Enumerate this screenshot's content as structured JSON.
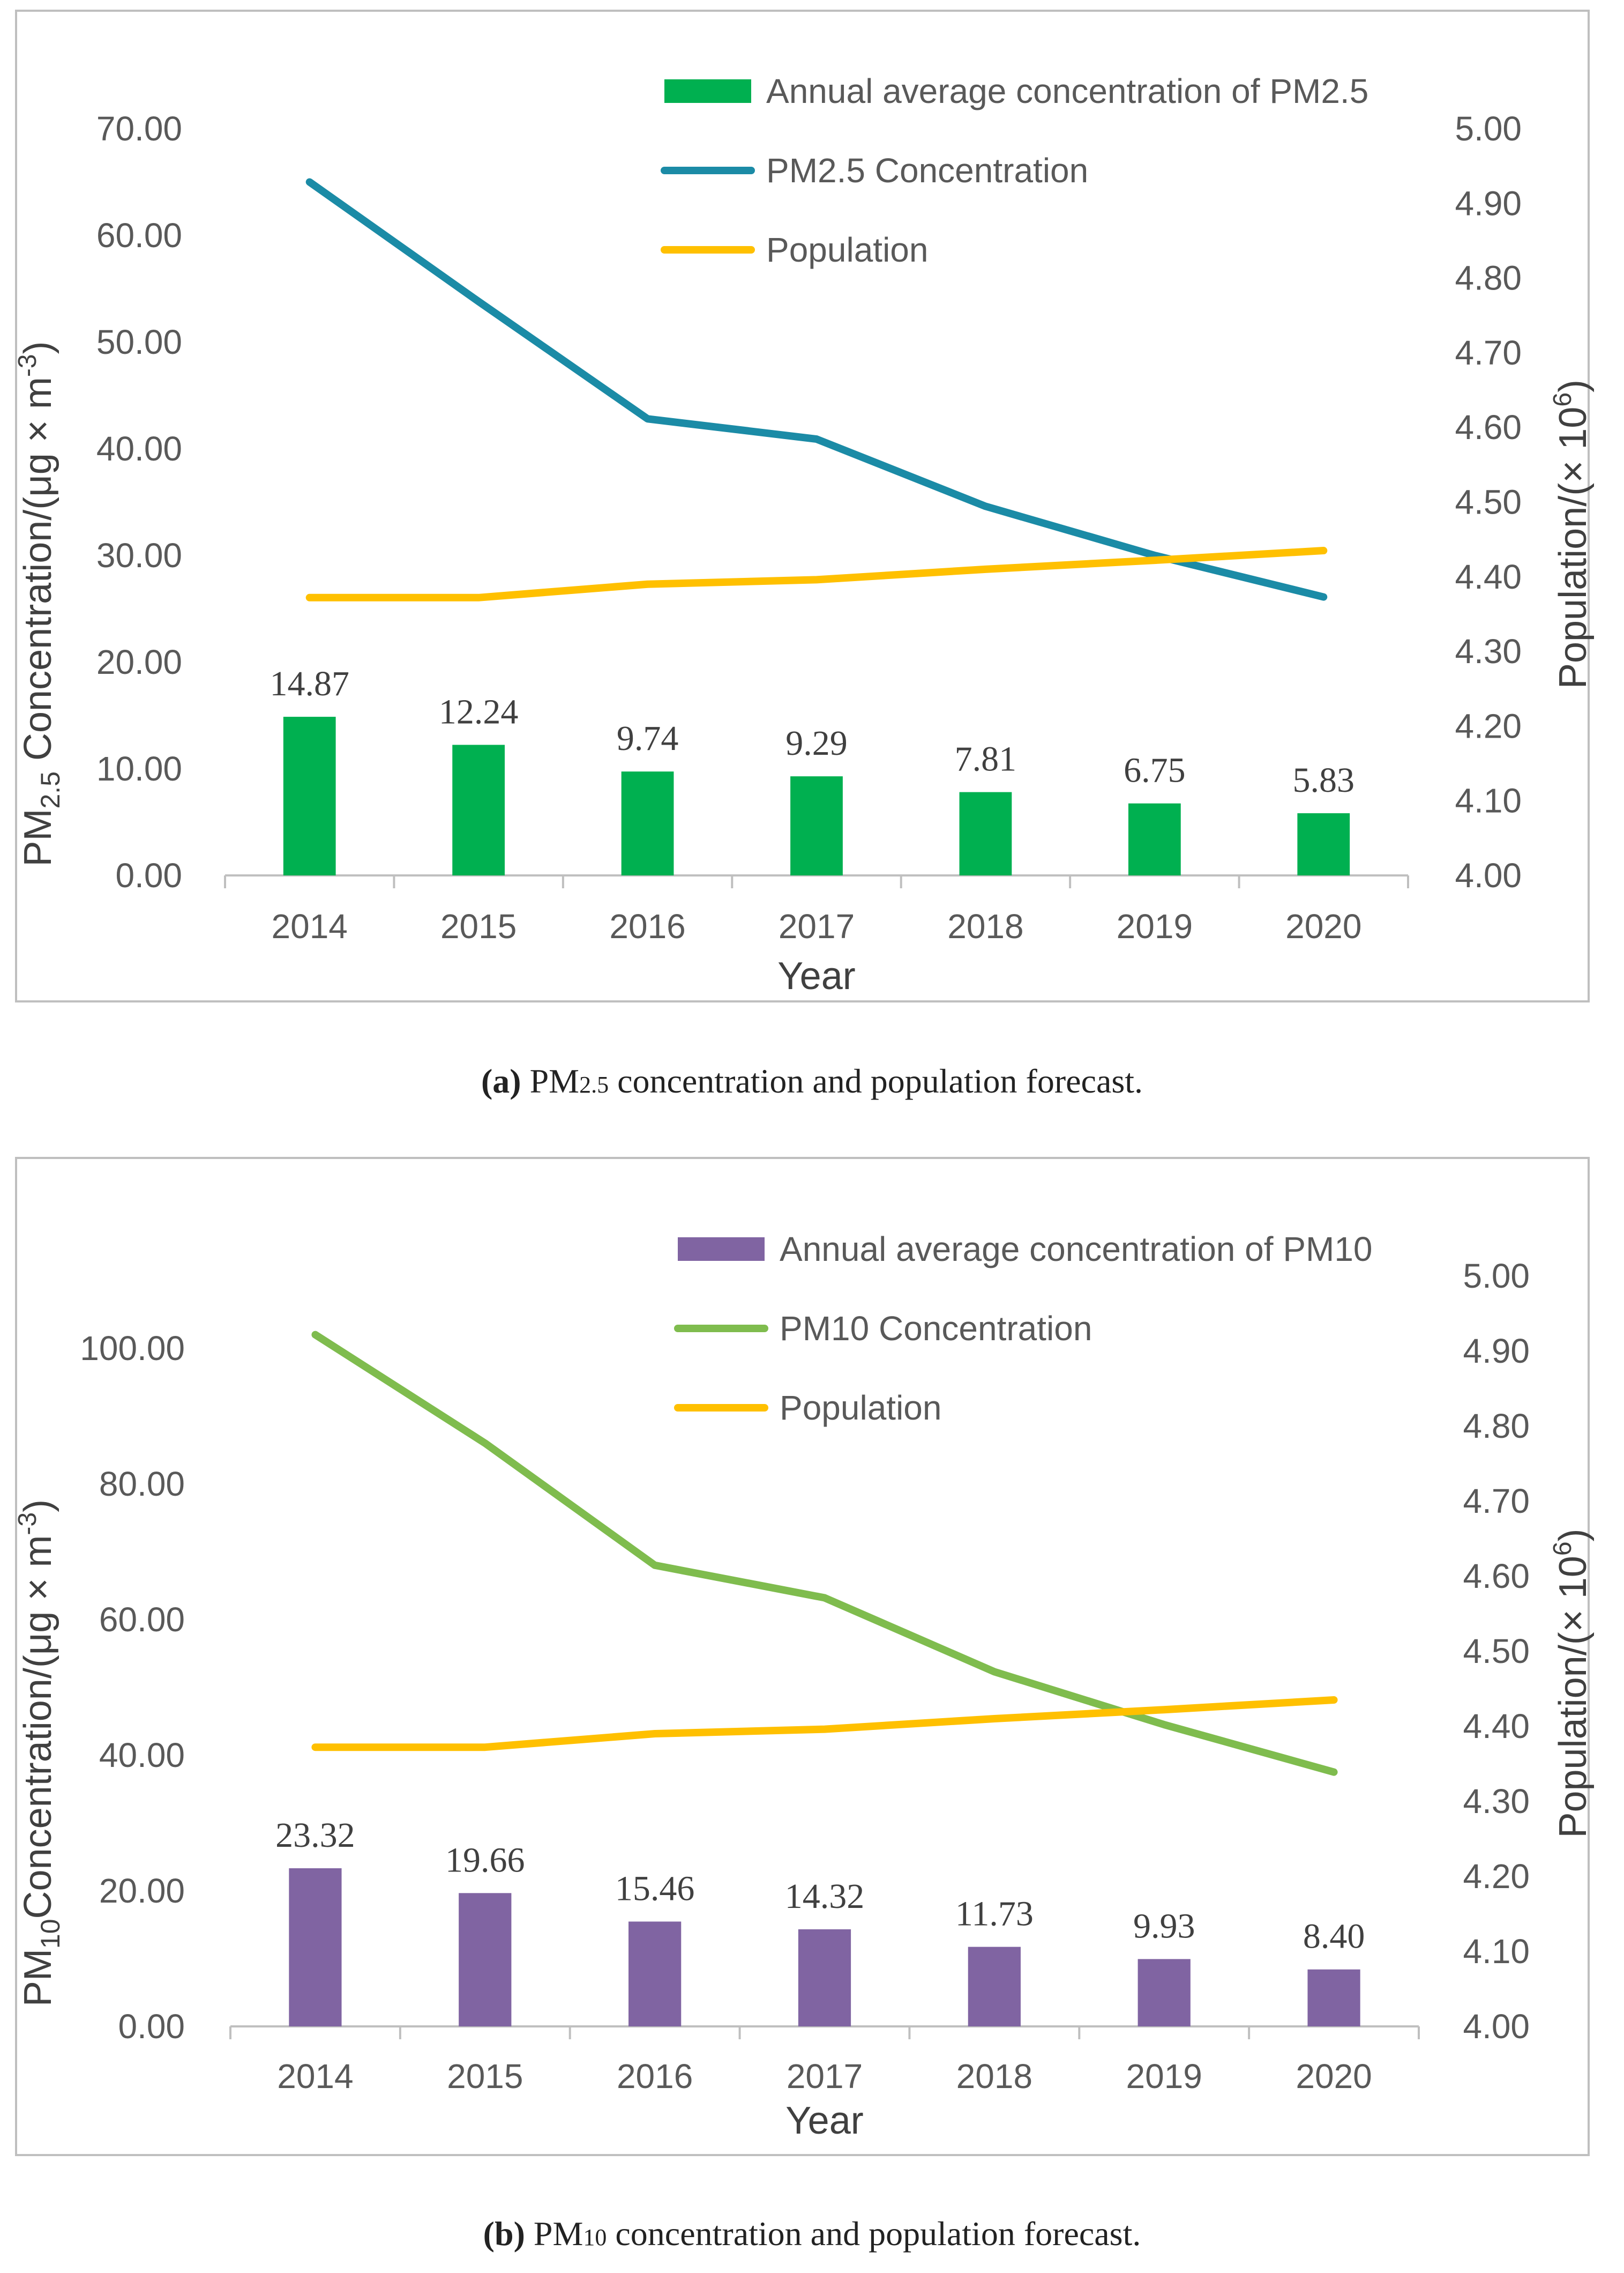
{
  "chart_data": [
    {
      "type": "bar+line",
      "panel_label": "(a)",
      "caption_prefix": "PM",
      "caption_sub": "2.5",
      "caption_rest": " concentration and population forecast.",
      "xlabel": "Year",
      "ylabel_left": {
        "main": "PM",
        "sub": "2.5",
        "rest": " Concentration/(μg × m",
        "sup": "-3",
        "close": ")"
      },
      "ylabel_right": {
        "main": "Population/(× 10",
        "sup": "6",
        "close": ")"
      },
      "categories": [
        "2014",
        "2015",
        "2016",
        "2017",
        "2018",
        "2019",
        "2020"
      ],
      "ylim_left": [
        0,
        70
      ],
      "ylim_right": [
        4.0,
        5.0
      ],
      "left_ticks": [
        "0.00",
        "10.00",
        "20.00",
        "30.00",
        "40.00",
        "50.00",
        "60.00",
        "70.00"
      ],
      "right_ticks": [
        "4.00",
        "4.10",
        "4.20",
        "4.30",
        "4.40",
        "4.50",
        "4.60",
        "4.70",
        "4.80",
        "4.90",
        "5.00"
      ],
      "series": [
        {
          "name": "Annual average concentration of PM2.5",
          "kind": "bar",
          "axis": "left",
          "color": "#00b050",
          "values": [
            14.87,
            12.24,
            9.74,
            9.29,
            7.81,
            6.75,
            5.83
          ],
          "labels": [
            "14.87",
            "12.24",
            "9.74",
            "9.29",
            "7.81",
            "6.75",
            "5.83"
          ]
        },
        {
          "name": "PM2.5 Concentration",
          "kind": "line",
          "axis": "left",
          "color": "#1b8ba6",
          "values": [
            65.0,
            53.8,
            42.8,
            40.9,
            34.6,
            30.0,
            26.1
          ]
        },
        {
          "name": "Population",
          "kind": "line",
          "axis": "right",
          "color": "#ffc000",
          "values": [
            4.372,
            4.372,
            4.39,
            4.396,
            4.41,
            4.422,
            4.435
          ]
        }
      ]
    },
    {
      "type": "bar+line",
      "panel_label": "(b)",
      "caption_prefix": "PM",
      "caption_sub": "10",
      "caption_rest": " concentration and population forecast.",
      "xlabel": "Year",
      "ylabel_left": {
        "main": "PM",
        "sub": "10",
        "rest": "Concentration/(μg × m",
        "sup": "-3",
        "close": ")"
      },
      "ylabel_right": {
        "main": "Population/(× 10",
        "sup": "6",
        "close": ")"
      },
      "categories": [
        "2014",
        "2015",
        "2016",
        "2017",
        "2018",
        "2019",
        "2020"
      ],
      "ylim_left": [
        0,
        110
      ],
      "ylim_right": [
        4.0,
        5.0
      ],
      "left_ticks": [
        "0.00",
        "20.00",
        "40.00",
        "60.00",
        "80.00",
        "100.00"
      ],
      "left_tick_values": [
        0,
        20,
        40,
        60,
        80,
        100
      ],
      "right_ticks": [
        "4.00",
        "4.10",
        "4.20",
        "4.30",
        "4.40",
        "4.50",
        "4.60",
        "4.70",
        "4.80",
        "4.90",
        "5.00"
      ],
      "series": [
        {
          "name": "Annual average concentration of PM10",
          "kind": "bar",
          "axis": "left",
          "color": "#8064a2",
          "values": [
            23.32,
            19.66,
            15.46,
            14.32,
            11.73,
            9.93,
            8.4
          ],
          "labels": [
            "23.32",
            "19.66",
            "15.46",
            "14.32",
            "11.73",
            "9.93",
            "8.40"
          ]
        },
        {
          "name": "PM10 Concentration",
          "kind": "line",
          "axis": "left",
          "color": "#7fbc4e",
          "values": [
            102.0,
            86.0,
            68.0,
            63.2,
            52.3,
            44.5,
            37.5
          ]
        },
        {
          "name": "Population",
          "kind": "line",
          "axis": "right",
          "color": "#ffc000",
          "values": [
            4.372,
            4.372,
            4.39,
            4.396,
            4.41,
            4.422,
            4.435
          ]
        }
      ]
    }
  ]
}
